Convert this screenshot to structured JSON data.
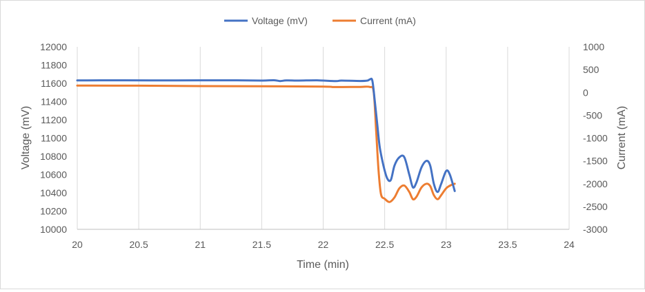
{
  "chart_data": {
    "type": "line",
    "xlabel": "Time (min)",
    "ylabel": "Voltage (mV)",
    "y2label": "Current (mA)",
    "xlim": [
      20,
      24
    ],
    "ylim": [
      10000,
      12000
    ],
    "y2lim": [
      -3000,
      1000
    ],
    "x_ticks": [
      "20",
      "20.5",
      "21",
      "21.5",
      "22",
      "22.5",
      "23",
      "23.5",
      "24"
    ],
    "y_ticks": [
      "10000",
      "10200",
      "10400",
      "10600",
      "10800",
      "11000",
      "11200",
      "11400",
      "11600",
      "11800",
      "12000"
    ],
    "y2_ticks": [
      "-3000",
      "-2500",
      "-2000",
      "-1500",
      "-1000",
      "-500",
      "0",
      "500",
      "1000"
    ],
    "grid": "vertical",
    "legend": "top-center",
    "series": [
      {
        "name": "Voltage (mV)",
        "axis": "left",
        "color": "#4472C4",
        "points": [
          [
            20.0,
            11632
          ],
          [
            20.3,
            11633
          ],
          [
            20.6,
            11632
          ],
          [
            21.0,
            11633
          ],
          [
            21.3,
            11633
          ],
          [
            21.5,
            11630
          ],
          [
            21.6,
            11634
          ],
          [
            21.65,
            11625
          ],
          [
            21.7,
            11632
          ],
          [
            21.8,
            11630
          ],
          [
            21.95,
            11633
          ],
          [
            22.1,
            11624
          ],
          [
            22.15,
            11630
          ],
          [
            22.3,
            11626
          ],
          [
            22.36,
            11630
          ],
          [
            22.38,
            11643
          ],
          [
            22.4,
            11628
          ],
          [
            22.42,
            11400
          ],
          [
            22.44,
            11150
          ],
          [
            22.46,
            10900
          ],
          [
            22.49,
            10700
          ],
          [
            22.52,
            10560
          ],
          [
            22.55,
            10540
          ],
          [
            22.58,
            10700
          ],
          [
            22.62,
            10790
          ],
          [
            22.66,
            10790
          ],
          [
            22.7,
            10600
          ],
          [
            22.73,
            10460
          ],
          [
            22.76,
            10520
          ],
          [
            22.8,
            10680
          ],
          [
            22.84,
            10750
          ],
          [
            22.87,
            10700
          ],
          [
            22.9,
            10500
          ],
          [
            22.93,
            10410
          ],
          [
            22.96,
            10500
          ],
          [
            23.0,
            10640
          ],
          [
            23.03,
            10600
          ],
          [
            23.07,
            10420
          ]
        ]
      },
      {
        "name": "Current (mA)",
        "axis": "right",
        "color": "#ED7D31",
        "points": [
          [
            20.0,
            150
          ],
          [
            20.5,
            148
          ],
          [
            21.0,
            140
          ],
          [
            21.5,
            135
          ],
          [
            22.0,
            128
          ],
          [
            22.1,
            118
          ],
          [
            22.3,
            122
          ],
          [
            22.38,
            120
          ],
          [
            22.41,
            20
          ],
          [
            22.43,
            -800
          ],
          [
            22.45,
            -1700
          ],
          [
            22.47,
            -2230
          ],
          [
            22.5,
            -2330
          ],
          [
            22.54,
            -2400
          ],
          [
            22.58,
            -2300
          ],
          [
            22.62,
            -2100
          ],
          [
            22.66,
            -2040
          ],
          [
            22.7,
            -2180
          ],
          [
            22.73,
            -2340
          ],
          [
            22.76,
            -2280
          ],
          [
            22.8,
            -2080
          ],
          [
            22.84,
            -2000
          ],
          [
            22.87,
            -2050
          ],
          [
            22.9,
            -2250
          ],
          [
            22.93,
            -2340
          ],
          [
            22.96,
            -2250
          ],
          [
            23.0,
            -2100
          ],
          [
            23.04,
            -2030
          ],
          [
            23.07,
            -2000
          ]
        ]
      }
    ]
  }
}
